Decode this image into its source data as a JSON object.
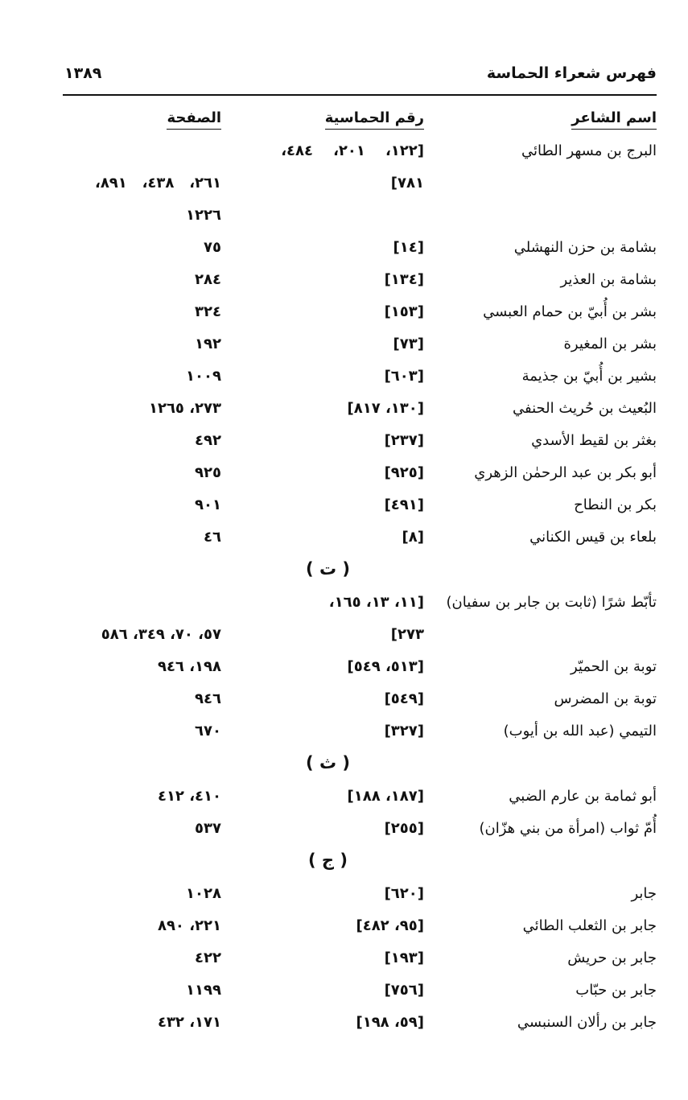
{
  "header": {
    "title": "فهرس شعراء الحماسة",
    "page_number": "١٣٨٩"
  },
  "columns": {
    "poet": "اسم الشاعر",
    "hamasa": "رقم الحماسية",
    "page": "الصفحة"
  },
  "rows": [
    {
      "type": "entry",
      "name": "البرج بن مسهر الطائي",
      "hamasa": "[١٢٢،    ٢٠١،    ٤٨٤،",
      "page": ""
    },
    {
      "type": "entry",
      "name": "",
      "hamasa": "٧٨١]",
      "page": "٢٦١،   ٤٣٨،   ٨٩١،"
    },
    {
      "type": "entry",
      "name": "",
      "hamasa": "",
      "page": "١٢٢٦"
    },
    {
      "type": "entry",
      "name": "بشامة بن حزن النهشلي",
      "hamasa": "[١٤]",
      "page": "٧٥"
    },
    {
      "type": "entry",
      "name": "بشامة بن العذير",
      "hamasa": "[١٣٤]",
      "page": "٢٨٤"
    },
    {
      "type": "entry",
      "name": "بشر بن أُبيّ بن حمام العبسي",
      "hamasa": "[١٥٣]",
      "page": "٣٢٤"
    },
    {
      "type": "entry",
      "name": "بشر بن المغيرة",
      "hamasa": "[٧٣]",
      "page": "١٩٢"
    },
    {
      "type": "entry",
      "name": "بشير بن أُبيّ بن جذيمة",
      "hamasa": "[٦٠٣]",
      "page": "١٠٠٩"
    },
    {
      "type": "entry",
      "name": "البُعيث بن حُريث الحنفي",
      "hamasa": "[١٣٠، ٨١٧]",
      "page": "٢٧٣، ١٢٦٥"
    },
    {
      "type": "entry",
      "name": "بغثر بن لقيط الأسدي",
      "hamasa": "[٢٣٧]",
      "page": "٤٩٢"
    },
    {
      "type": "entry",
      "name": "أبو بكر بن عبد الرحمٰن الزهري",
      "hamasa": "[٩٢٥]",
      "page": "٩٢٥"
    },
    {
      "type": "entry",
      "name": "بكر بن النطاح",
      "hamasa": "[٤٩١]",
      "page": "٩٠١"
    },
    {
      "type": "entry",
      "name": "بلعاء بن قيس الكناني",
      "hamasa": "[٨]",
      "page": "٤٦"
    },
    {
      "type": "section",
      "label": "( ت )"
    },
    {
      "type": "entry",
      "name": "تأبّط شرًا (ثابت بن جابر بن سفيان)",
      "hamasa": "[١١، ١٣، ١٦٥،",
      "page": ""
    },
    {
      "type": "entry",
      "name": "",
      "hamasa": "٢٧٣]",
      "page": "٥٧، ٧٠، ٣٤٩، ٥٨٦"
    },
    {
      "type": "entry",
      "name": "توبة بن الحميّر",
      "hamasa": "[٥١٣، ٥٤٩]",
      "page": "١٩٨، ٩٤٦"
    },
    {
      "type": "entry",
      "name": "توبة بن المضرس",
      "hamasa": "[٥٤٩]",
      "page": "٩٤٦"
    },
    {
      "type": "entry",
      "name": "التيمي (عبد الله بن أيوب)",
      "hamasa": "[٣٢٧]",
      "page": "٦٧٠"
    },
    {
      "type": "section",
      "label": "( ث )"
    },
    {
      "type": "entry",
      "name": "أبو ثمامة بن عارم الضبي",
      "hamasa": "[١٨٧، ١٨٨]",
      "page": "٤١٠، ٤١٢"
    },
    {
      "type": "entry",
      "name": "أُمّ ثواب (امرأة من بني هزّان)",
      "hamasa": "[٢٥٥]",
      "page": "٥٣٧"
    },
    {
      "type": "section",
      "label": "( ج )"
    },
    {
      "type": "entry",
      "name": "جابر",
      "hamasa": "[٦٢٠]",
      "page": "١٠٢٨"
    },
    {
      "type": "entry",
      "name": "جابر بن الثعلب الطائي",
      "hamasa": "[٩٥، ٤٨٢]",
      "page": "٢٢١، ٨٩٠"
    },
    {
      "type": "entry",
      "name": "جابر بن حريش",
      "hamasa": "[١٩٣]",
      "page": "٤٢٢"
    },
    {
      "type": "entry",
      "name": "جابر بن حبّاب",
      "hamasa": "[٧٥٦]",
      "page": "١١٩٩"
    },
    {
      "type": "entry",
      "name": "جابر بن رألان السنبسي",
      "hamasa": "[٥٩، ١٩٨]",
      "page": "١٧١، ٤٣٢"
    }
  ]
}
